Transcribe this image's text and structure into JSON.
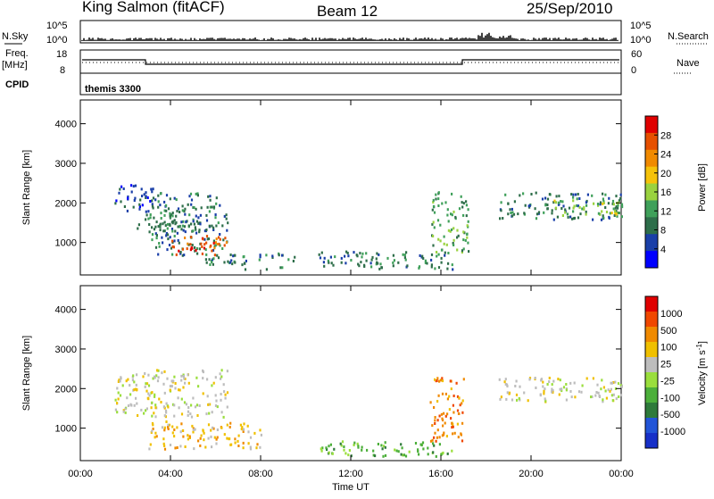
{
  "header": {
    "station": "King Salmon (fitACF)",
    "beam": "Beam 12",
    "date": "25/Sep/2010"
  },
  "strip_labels": {
    "nsky": "N.Sky",
    "nsearch": "N.Search",
    "freq_line1": "Freq.",
    "freq_line2": "[MHz]",
    "nave": "Nave",
    "cpid": "CPID",
    "cpid_value": "themis 3300",
    "nsky_ticks": [
      "10^5",
      "10^0"
    ],
    "nsearch_ticks": [
      "10^5",
      "10^0"
    ],
    "freq_ticks": [
      "18",
      "8"
    ],
    "nave_ticks": [
      "60",
      "0"
    ]
  },
  "colors": {
    "power_scale": [
      "#0000ff",
      "#1a3fa8",
      "#2e6e4a",
      "#3fa05a",
      "#9ad23f",
      "#f5c20a",
      "#f08a00",
      "#e65000",
      "#e00000"
    ],
    "velocity_scale": [
      "#1730c8",
      "#2255d8",
      "#2e7a3a",
      "#4caf3a",
      "#9ade3c",
      "#bdbdbd",
      "#f0c000",
      "#f08a00",
      "#f04800",
      "#e00000"
    ]
  },
  "chart_data": [
    {
      "type": "heatmap",
      "title": "Power",
      "xlabel": "Time UT",
      "ylabel": "Slant Range [km]",
      "x_ticks": [
        "00:00",
        "04:00",
        "08:00",
        "12:00",
        "16:00",
        "20:00",
        "00:00"
      ],
      "y_ticks": [
        1000,
        2000,
        3000,
        4000
      ],
      "ylim": [
        180,
        4600
      ],
      "colorbar": {
        "label": "Power [dB]",
        "ticks": [
          4,
          8,
          12,
          16,
          20,
          24,
          28
        ],
        "range": [
          0,
          32
        ]
      },
      "regions": [
        {
          "t0": 1.5,
          "t1": 3.2,
          "r0": 1800,
          "r1": 2500,
          "level": 1
        },
        {
          "t0": 2.5,
          "t1": 6.5,
          "r0": 1300,
          "r1": 2300,
          "level": 2
        },
        {
          "t0": 3.0,
          "t1": 6.5,
          "r0": 700,
          "r1": 1600,
          "level": 2
        },
        {
          "t0": 4.0,
          "t1": 6.5,
          "r0": 700,
          "r1": 1200,
          "level": 7
        },
        {
          "t0": 5.5,
          "t1": 9.5,
          "r0": 350,
          "r1": 750,
          "level": 2
        },
        {
          "t0": 10.5,
          "t1": 16.5,
          "r0": 350,
          "r1": 800,
          "level": 2
        },
        {
          "t0": 15.5,
          "t1": 17.2,
          "r0": 700,
          "r1": 2300,
          "level": 3
        },
        {
          "t0": 18.5,
          "t1": 24.0,
          "r0": 1600,
          "r1": 2300,
          "level": 2
        },
        {
          "t0": 21.0,
          "t1": 24.0,
          "r0": 1700,
          "r1": 2100,
          "level": 4
        }
      ]
    },
    {
      "type": "heatmap",
      "title": "Velocity",
      "xlabel": "Time UT",
      "ylabel": "Slant Range [km]",
      "x_ticks": [
        "00:00",
        "04:00",
        "08:00",
        "12:00",
        "16:00",
        "20:00",
        "00:00"
      ],
      "y_ticks": [
        1000,
        2000,
        3000,
        4000
      ],
      "ylim": [
        180,
        4600
      ],
      "colorbar": {
        "label": "Velocity [m s^-1]",
        "ticks": [
          1000,
          500,
          100,
          25,
          -25,
          -100,
          -500,
          -1000
        ]
      },
      "regions": [
        {
          "t0": 1.5,
          "t1": 6.5,
          "r0": 1300,
          "r1": 2500,
          "level": 5
        },
        {
          "t0": 3.0,
          "t1": 8.0,
          "r0": 500,
          "r1": 1200,
          "level": 6
        },
        {
          "t0": 10.5,
          "t1": 16.5,
          "r0": 300,
          "r1": 700,
          "level": 3
        },
        {
          "t0": 15.5,
          "t1": 17.0,
          "r0": 700,
          "r1": 2300,
          "level": 7
        },
        {
          "t0": 18.5,
          "t1": 24.0,
          "r0": 1700,
          "r1": 2300,
          "level": 5
        }
      ]
    }
  ]
}
